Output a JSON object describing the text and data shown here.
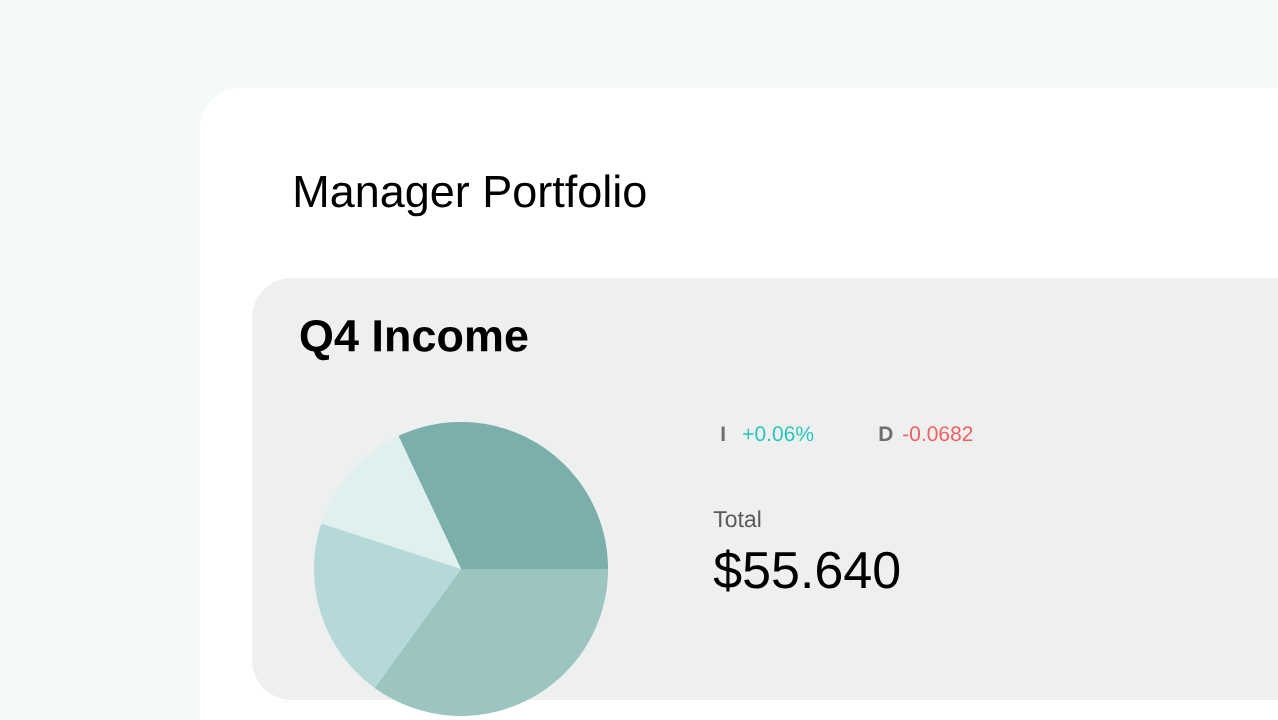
{
  "chart_data": [
    {
      "type": "other",
      "title": "Manager Portfolio",
      "annotations": [
        "I",
        "+0.06%",
        "D",
        "-0.0682",
        "Total",
        "$55.640"
      ]
    },
    {
      "type": "pie",
      "title": "Q4 Income",
      "categories": [
        null,
        null,
        null,
        null
      ],
      "values": [
        32,
        13,
        20,
        35
      ],
      "colors": [
        "#7aafac",
        "#dff0ef",
        "#b5d9d9",
        "#9cc5c1"
      ]
    }
  ]
}
